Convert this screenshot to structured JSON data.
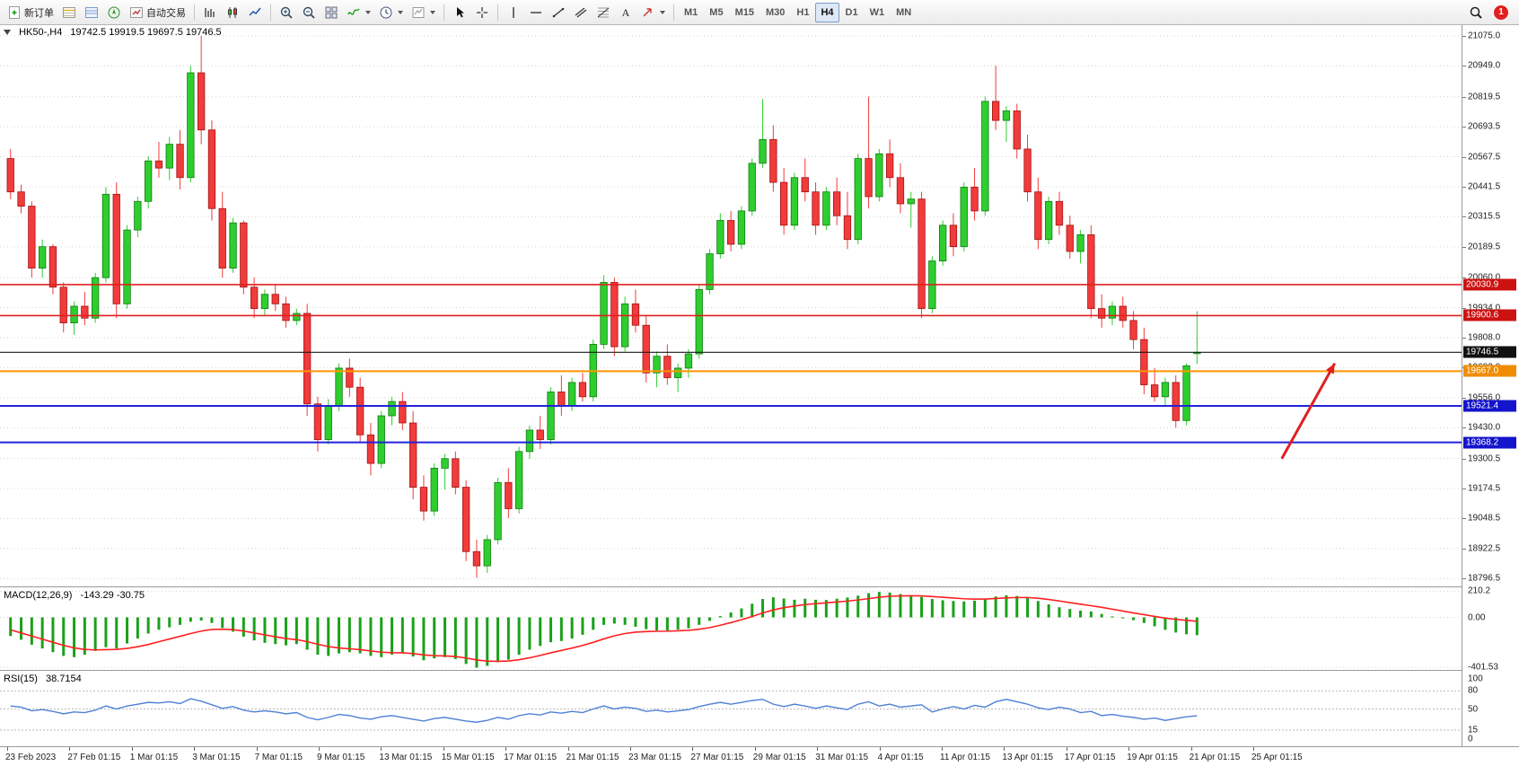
{
  "toolbar": {
    "groups": [
      {
        "items": [
          {
            "name": "new-order-button",
            "icon": "new-order-icon",
            "label": "新订单"
          },
          {
            "name": "market-watch-button",
            "icon": "market-watch-icon"
          },
          {
            "name": "data-window-button",
            "icon": "data-window-icon"
          },
          {
            "name": "navigator-button",
            "icon": "navigator-icon"
          },
          {
            "name": "autotrading-button",
            "icon": "autotrading-icon",
            "label": "自动交易"
          }
        ]
      },
      {
        "items": [
          {
            "name": "bar-chart-button",
            "icon": "bar-chart-icon"
          },
          {
            "name": "candlestick-chart-button",
            "icon": "candlestick-icon"
          },
          {
            "name": "line-chart-button",
            "icon": "line-chart-icon"
          }
        ]
      },
      {
        "items": [
          {
            "name": "zoom-in-button",
            "icon": "zoom-in-icon"
          },
          {
            "name": "zoom-out-button",
            "icon": "zoom-out-icon"
          },
          {
            "name": "tile-windows-button",
            "icon": "tile-windows-icon"
          },
          {
            "name": "indicators-button",
            "icon": "indicators-icon",
            "dropdown": true
          },
          {
            "name": "periods-button",
            "icon": "periods-icon",
            "dropdown": true
          },
          {
            "name": "templates-button",
            "icon": "templates-icon",
            "dropdown": true
          }
        ]
      },
      {
        "items": [
          {
            "name": "cursor-button",
            "icon": "cursor-icon"
          },
          {
            "name": "crosshair-button",
            "icon": "crosshair-icon"
          }
        ]
      },
      {
        "items": [
          {
            "name": "vertical-line-button",
            "icon": "vertical-line-icon"
          },
          {
            "name": "horizontal-line-button",
            "icon": "horizontal-line-icon"
          },
          {
            "name": "trendline-button",
            "icon": "trendline-icon"
          },
          {
            "name": "channel-button",
            "icon": "channel-icon"
          },
          {
            "name": "fibonacci-button",
            "icon": "fibonacci-icon"
          },
          {
            "name": "text-button",
            "icon": "text-icon"
          },
          {
            "name": "arrows-button",
            "icon": "arrows-icon",
            "dropdown": true
          }
        ]
      },
      {
        "type": "timeframes",
        "items": [
          "M1",
          "M5",
          "M15",
          "M30",
          "H1",
          "H4",
          "D1",
          "W1",
          "MN"
        ],
        "active": "H4"
      }
    ],
    "notification_count": "1"
  },
  "chart": {
    "symbol_period": "HK50-,H4",
    "ohlc_text": "19742.5 19919.5 19697.5 19746.5"
  },
  "chart_data": {
    "type": "candlestick",
    "title": "HK50-,H4",
    "price_range": [
      18760,
      21120
    ],
    "price_ticks": [
      "21075.0",
      "20949.0",
      "20819.5",
      "20693.5",
      "20567.5",
      "20441.5",
      "20315.5",
      "20189.5",
      "20060.0",
      "19934.0",
      "19808.0",
      "19682.0",
      "19556.0",
      "19430.0",
      "19300.5",
      "19174.5",
      "19048.5",
      "18922.5",
      "18796.5"
    ],
    "colors": {
      "up": "#2fce2f",
      "up_edge": "#117a11",
      "down": "#f23b3b",
      "down_edge": "#a01414",
      "grid": "#d4d4d4"
    },
    "levels": [
      {
        "price": 20030.9,
        "label": "20030.9",
        "color": "#e02020",
        "badge_bg": "#cc1111",
        "width": 1.6
      },
      {
        "price": 19900.6,
        "label": "19900.6",
        "color": "#e02020",
        "badge_bg": "#cc1111",
        "width": 1.6
      },
      {
        "price": 19746.5,
        "label": "19746.5",
        "color": "#1a1a1a",
        "badge_bg": "#111111",
        "width": 1.2
      },
      {
        "price": 19667.0,
        "label": "19667.0",
        "color": "#ff9500",
        "badge_bg": "#f08c00",
        "width": 2
      },
      {
        "price": 19521.4,
        "label": "19521.4",
        "color": "#2222dd",
        "badge_bg": "#1414cc",
        "width": 2
      },
      {
        "price": 19368.2,
        "label": "19368.2",
        "color": "#2222dd",
        "badge_bg": "#1414cc",
        "width": 2
      }
    ],
    "annotations": [
      {
        "type": "arrow",
        "from": {
          "bar": 120,
          "price": 19300
        },
        "to": {
          "bar": 125,
          "price": 19700
        },
        "color": "#e02020"
      }
    ],
    "ohlc": [
      [
        20560,
        20600,
        20390,
        20420
      ],
      [
        20420,
        20450,
        20330,
        20360
      ],
      [
        20360,
        20380,
        20060,
        20100
      ],
      [
        20100,
        20220,
        20060,
        20190
      ],
      [
        20190,
        20200,
        19990,
        20020
      ],
      [
        20020,
        20040,
        19830,
        19870
      ],
      [
        19870,
        19960,
        19820,
        19940
      ],
      [
        19940,
        20000,
        19860,
        19890
      ],
      [
        19890,
        20080,
        19870,
        20060
      ],
      [
        20060,
        20440,
        20040,
        20410
      ],
      [
        20410,
        20460,
        19890,
        19950
      ],
      [
        19950,
        20280,
        19930,
        20260
      ],
      [
        20260,
        20400,
        20230,
        20380
      ],
      [
        20380,
        20570,
        20350,
        20550
      ],
      [
        20550,
        20630,
        20480,
        20520
      ],
      [
        20520,
        20650,
        20470,
        20620
      ],
      [
        20620,
        20680,
        20430,
        20480
      ],
      [
        20480,
        20950,
        20460,
        20920
      ],
      [
        20920,
        21075,
        20620,
        20680
      ],
      [
        20680,
        20720,
        20300,
        20350
      ],
      [
        20350,
        20420,
        20060,
        20100
      ],
      [
        20100,
        20310,
        20080,
        20290
      ],
      [
        20290,
        20300,
        19990,
        20020
      ],
      [
        20020,
        20060,
        19890,
        19930
      ],
      [
        19930,
        20010,
        19900,
        19990
      ],
      [
        19990,
        20030,
        19920,
        19950
      ],
      [
        19950,
        19980,
        19850,
        19880
      ],
      [
        19880,
        19930,
        19860,
        19910
      ],
      [
        19910,
        19950,
        19480,
        19530
      ],
      [
        19530,
        19560,
        19330,
        19380
      ],
      [
        19380,
        19550,
        19360,
        19520
      ],
      [
        19520,
        19700,
        19500,
        19680
      ],
      [
        19680,
        19720,
        19560,
        19600
      ],
      [
        19600,
        19640,
        19370,
        19400
      ],
      [
        19400,
        19450,
        19230,
        19280
      ],
      [
        19280,
        19500,
        19260,
        19480
      ],
      [
        19480,
        19560,
        19440,
        19540
      ],
      [
        19540,
        19580,
        19420,
        19450
      ],
      [
        19450,
        19500,
        19130,
        19180
      ],
      [
        19180,
        19230,
        19040,
        19080
      ],
      [
        19080,
        19280,
        19060,
        19260
      ],
      [
        19260,
        19320,
        19170,
        19300
      ],
      [
        19300,
        19330,
        19150,
        19180
      ],
      [
        19180,
        19210,
        18870,
        18910
      ],
      [
        18910,
        18960,
        18800,
        18850
      ],
      [
        18850,
        18980,
        18820,
        18960
      ],
      [
        18960,
        19220,
        18940,
        19200
      ],
      [
        19200,
        19260,
        19050,
        19090
      ],
      [
        19090,
        19350,
        19070,
        19330
      ],
      [
        19330,
        19440,
        19300,
        19420
      ],
      [
        19420,
        19480,
        19340,
        19380
      ],
      [
        19380,
        19600,
        19360,
        19580
      ],
      [
        19580,
        19650,
        19480,
        19520
      ],
      [
        19520,
        19640,
        19500,
        19620
      ],
      [
        19620,
        19660,
        19540,
        19560
      ],
      [
        19560,
        19800,
        19540,
        19780
      ],
      [
        19780,
        20070,
        19760,
        20040
      ],
      [
        20040,
        20060,
        19730,
        19770
      ],
      [
        19770,
        19980,
        19750,
        19950
      ],
      [
        19950,
        20010,
        19830,
        19860
      ],
      [
        19860,
        19900,
        19620,
        19660
      ],
      [
        19660,
        19750,
        19600,
        19730
      ],
      [
        19730,
        19780,
        19610,
        19640
      ],
      [
        19640,
        19700,
        19580,
        19680
      ],
      [
        19680,
        19760,
        19640,
        19740
      ],
      [
        19740,
        20030,
        19720,
        20010
      ],
      [
        20010,
        20180,
        19990,
        20160
      ],
      [
        20160,
        20330,
        20140,
        20300
      ],
      [
        20300,
        20340,
        20170,
        20200
      ],
      [
        20200,
        20360,
        20180,
        20340
      ],
      [
        20340,
        20560,
        20320,
        20540
      ],
      [
        20540,
        20810,
        20520,
        20640
      ],
      [
        20640,
        20700,
        20420,
        20460
      ],
      [
        20460,
        20520,
        20240,
        20280
      ],
      [
        20280,
        20500,
        20260,
        20480
      ],
      [
        20480,
        20560,
        20380,
        20420
      ],
      [
        20420,
        20460,
        20240,
        20280
      ],
      [
        20280,
        20440,
        20260,
        20420
      ],
      [
        20420,
        20480,
        20280,
        20320
      ],
      [
        20320,
        20420,
        20180,
        20220
      ],
      [
        20220,
        20580,
        20200,
        20560
      ],
      [
        20560,
        20820,
        20350,
        20400
      ],
      [
        20400,
        20600,
        20380,
        20580
      ],
      [
        20580,
        20640,
        20440,
        20480
      ],
      [
        20480,
        20540,
        20330,
        20370
      ],
      [
        20370,
        20420,
        20270,
        20390
      ],
      [
        20390,
        20420,
        19890,
        19930
      ],
      [
        19930,
        20150,
        19910,
        20130
      ],
      [
        20130,
        20300,
        20110,
        20280
      ],
      [
        20280,
        20330,
        20150,
        20190
      ],
      [
        20190,
        20460,
        20170,
        20440
      ],
      [
        20440,
        20520,
        20300,
        20340
      ],
      [
        20340,
        20820,
        20320,
        20800
      ],
      [
        20800,
        20950,
        20680,
        20720
      ],
      [
        20720,
        20780,
        20630,
        20760
      ],
      [
        20760,
        20790,
        20560,
        20600
      ],
      [
        20600,
        20660,
        20380,
        20420
      ],
      [
        20420,
        20480,
        20180,
        20220
      ],
      [
        20220,
        20400,
        20200,
        20380
      ],
      [
        20380,
        20420,
        20240,
        20280
      ],
      [
        20280,
        20320,
        20140,
        20170
      ],
      [
        20170,
        20260,
        20120,
        20240
      ],
      [
        20240,
        20280,
        19890,
        19930
      ],
      [
        19930,
        19990,
        19850,
        19890
      ],
      [
        19890,
        19960,
        19860,
        19940
      ],
      [
        19940,
        19980,
        19850,
        19880
      ],
      [
        19880,
        19920,
        19760,
        19800
      ],
      [
        19800,
        19850,
        19570,
        19610
      ],
      [
        19610,
        19680,
        19540,
        19560
      ],
      [
        19560,
        19640,
        19520,
        19620
      ],
      [
        19620,
        19650,
        19430,
        19460
      ],
      [
        19460,
        19700,
        19440,
        19690
      ],
      [
        19742.5,
        19919.5,
        19697.5,
        19746.5
      ]
    ],
    "macd": {
      "label": "MACD(12,26,9)",
      "value_text": "-143.29 -30.75",
      "range": [
        -430,
        235
      ],
      "ticks": [
        "210.2",
        "0.00",
        "-401.53"
      ],
      "histogram_color": "#19a119",
      "signal_color": "#ff2020",
      "histogram": [
        -150,
        -180,
        -220,
        -250,
        -280,
        -310,
        -320,
        -300,
        -270,
        -240,
        -250,
        -210,
        -170,
        -130,
        -100,
        -80,
        -60,
        -35,
        -25,
        -45,
        -85,
        -115,
        -155,
        -185,
        -205,
        -215,
        -225,
        -215,
        -260,
        -300,
        -310,
        -290,
        -280,
        -290,
        -310,
        -320,
        -300,
        -290,
        -315,
        -345,
        -330,
        -320,
        -335,
        -375,
        -405,
        -390,
        -360,
        -340,
        -300,
        -260,
        -230,
        -200,
        -190,
        -170,
        -140,
        -100,
        -60,
        -50,
        -60,
        -75,
        -95,
        -105,
        -105,
        -98,
        -88,
        -60,
        -28,
        10,
        40,
        72,
        110,
        148,
        162,
        152,
        142,
        150,
        142,
        140,
        150,
        160,
        175,
        195,
        205,
        200,
        188,
        178,
        165,
        148,
        138,
        132,
        128,
        135,
        150,
        168,
        178,
        172,
        158,
        132,
        105,
        82,
        68,
        55,
        48,
        28,
        8,
        -8,
        -22,
        -45,
        -72,
        -100,
        -122,
        -136,
        -143.29
      ],
      "signal": [
        -100,
        -125,
        -150,
        -175,
        -200,
        -225,
        -245,
        -258,
        -262,
        -260,
        -258,
        -250,
        -236,
        -218,
        -196,
        -174,
        -152,
        -130,
        -110,
        -97,
        -95,
        -99,
        -110,
        -125,
        -141,
        -156,
        -170,
        -179,
        -195,
        -216,
        -235,
        -246,
        -253,
        -260,
        -270,
        -280,
        -284,
        -285,
        -291,
        -302,
        -308,
        -310,
        -315,
        -327,
        -343,
        -352,
        -354,
        -351,
        -341,
        -325,
        -306,
        -285,
        -266,
        -247,
        -226,
        -201,
        -173,
        -148,
        -130,
        -119,
        -114,
        -112,
        -111,
        -108,
        -104,
        -95,
        -82,
        -63,
        -42,
        -19,
        7,
        35,
        60,
        78,
        91,
        103,
        111,
        117,
        124,
        131,
        140,
        151,
        162,
        170,
        173,
        174,
        173,
        168,
        162,
        156,
        150,
        147,
        148,
        152,
        157,
        160,
        160,
        154,
        144,
        132,
        119,
        106,
        94,
        81,
        66,
        51,
        36,
        22,
        8,
        -6,
        -16,
        -24,
        -30.75
      ]
    },
    "rsi": {
      "label": "RSI(15)",
      "value_text": "38.7154",
      "range": [
        0,
        100
      ],
      "ticks": [
        "100",
        "80",
        "50",
        "15",
        "0"
      ],
      "levels": [
        80,
        50,
        15
      ],
      "line_color": "#4f81d6",
      "values": [
        55,
        53,
        47,
        49,
        46,
        42,
        45,
        44,
        48,
        55,
        50,
        55,
        58,
        61,
        60,
        62,
        59,
        67,
        63,
        57,
        51,
        54,
        48,
        45,
        47,
        45,
        42,
        44,
        36,
        32,
        36,
        41,
        39,
        35,
        33,
        37,
        39,
        36,
        33,
        30,
        34,
        36,
        33,
        30,
        28,
        31,
        36,
        33,
        39,
        42,
        40,
        45,
        43,
        46,
        44,
        50,
        55,
        50,
        53,
        51,
        46,
        48,
        45,
        47,
        49,
        54,
        58,
        61,
        58,
        61,
        64,
        66,
        58,
        54,
        58,
        55,
        51,
        55,
        52,
        49,
        58,
        62,
        55,
        58,
        53,
        55,
        57,
        45,
        50,
        54,
        50,
        56,
        53,
        62,
        66,
        62,
        58,
        52,
        49,
        53,
        50,
        44,
        46,
        39,
        41,
        38,
        36,
        33,
        35,
        31,
        34,
        37,
        38.7
      ]
    },
    "time_labels": [
      "23 Feb 2023",
      "27 Feb 01:15",
      "1 Mar 01:15",
      "3 Mar 01:15",
      "7 Mar 01:15",
      "9 Mar 01:15",
      "13 Mar 01:15",
      "15 Mar 01:15",
      "17 Mar 01:15",
      "21 Mar 01:15",
      "23 Mar 01:15",
      "27 Mar 01:15",
      "29 Mar 01:15",
      "31 Mar 01:15",
      "4 Apr 01:15",
      "11 Apr 01:15",
      "13 Apr 01:15",
      "17 Apr 01:15",
      "19 Apr 01:15",
      "21 Apr 01:15",
      "25 Apr 01:15"
    ]
  }
}
